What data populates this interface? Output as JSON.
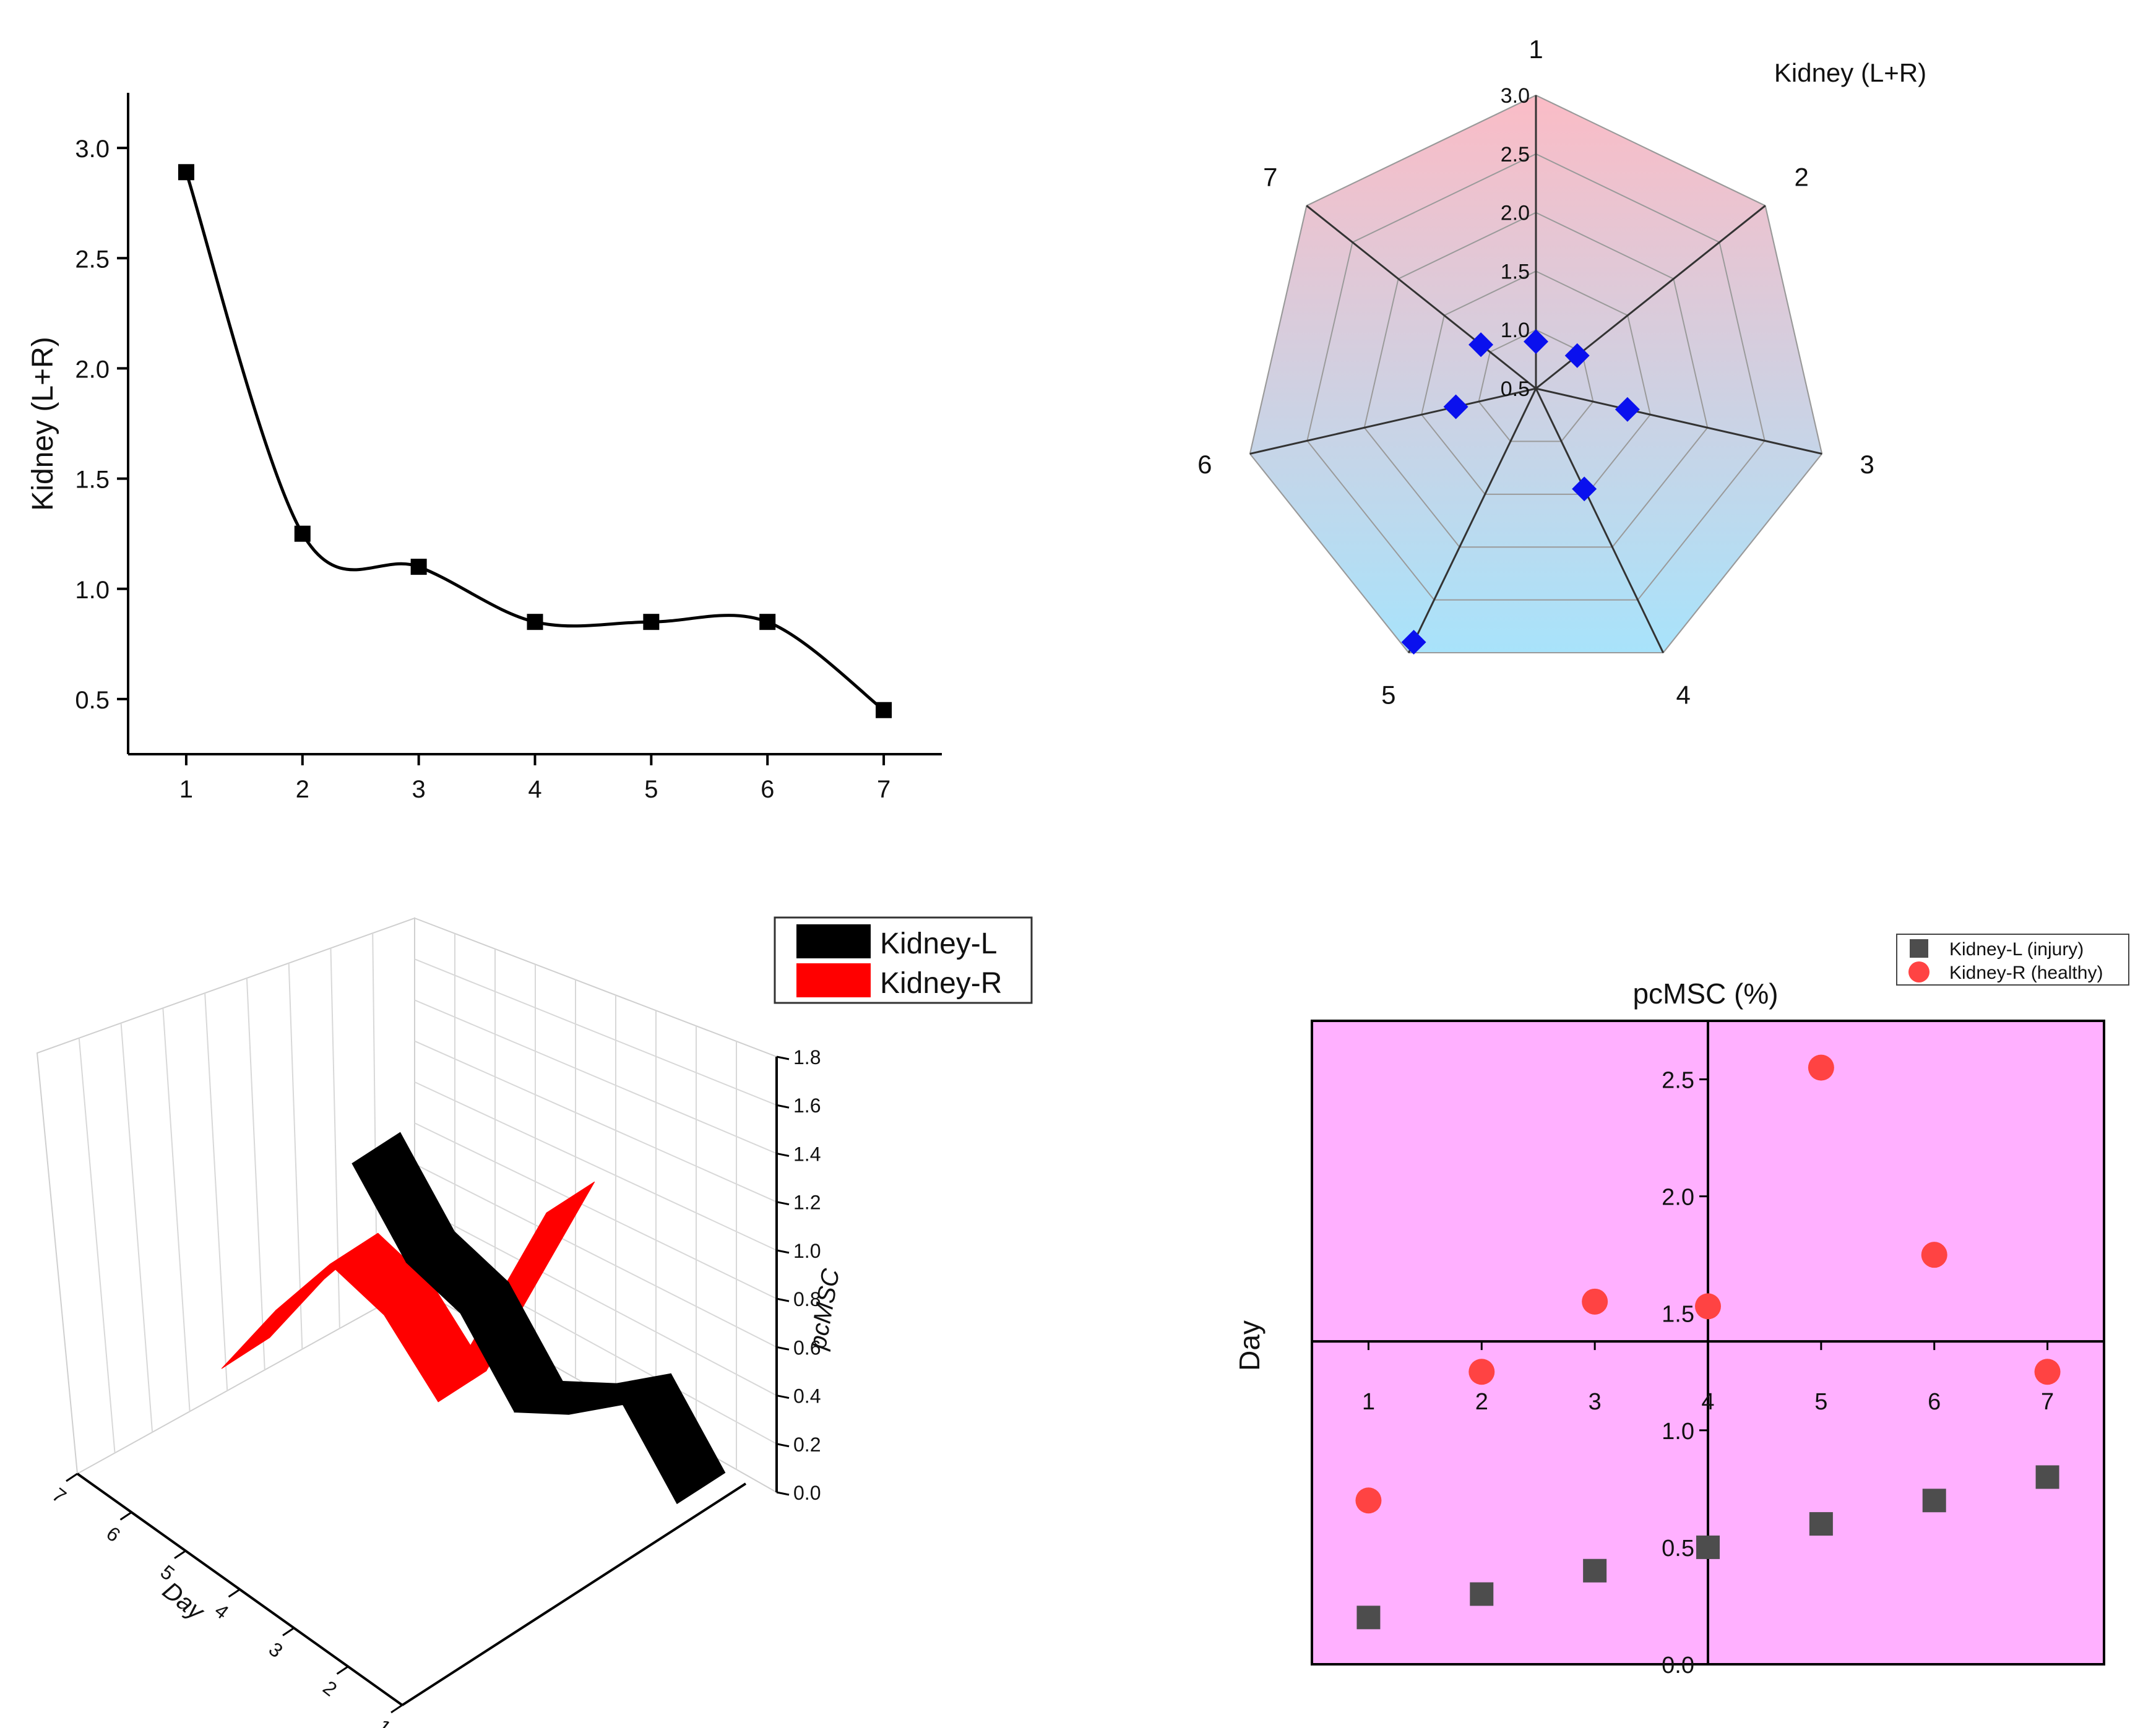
{
  "chart_data": [
    {
      "id": "line",
      "type": "line",
      "title": "",
      "xlabel": "",
      "ylabel": "Kidney (L+R)",
      "x": [
        1,
        2,
        3,
        4,
        5,
        6,
        7
      ],
      "values": [
        2.89,
        1.25,
        1.1,
        0.85,
        0.85,
        0.85,
        0.45
      ],
      "xlim": [
        0.5,
        7.5
      ],
      "ylim": [
        0.25,
        3.25
      ],
      "yticks": [
        0.5,
        1.0,
        1.5,
        2.0,
        2.5,
        3.0
      ],
      "ytick_labels": [
        "0.5",
        "1.0",
        "1.5",
        "2.0",
        "2.5",
        "3.0"
      ],
      "xtick_labels": [
        "1",
        "2",
        "3",
        "4",
        "5",
        "6",
        "7"
      ],
      "marker": "square",
      "color": "#000000"
    },
    {
      "id": "radar",
      "type": "radar",
      "title": "Kidney (L+R)",
      "axes": [
        "1",
        "2",
        "3",
        "4",
        "5",
        "6",
        "7"
      ],
      "values": [
        0.9,
        0.95,
        1.3,
        1.45,
        2.9,
        1.2,
        1.1
      ],
      "rlim": [
        0.5,
        3.0
      ],
      "ring_labels": [
        "0.5",
        "1.0",
        "1.5",
        "2.0",
        "2.5",
        "3.0"
      ],
      "ring_values": [
        0.5,
        1.0,
        1.5,
        2.0,
        2.5,
        3.0
      ],
      "marker_color": "#0a10ee",
      "fill_top_color": "#fbbcc6",
      "fill_bottom_color": "#a8e3fb"
    },
    {
      "id": "ribbon3d",
      "type": "3d-ribbon",
      "zlabel": "pcMSC",
      "daylabel": "Day",
      "zticks": [
        "0.0",
        "0.2",
        "0.4",
        "0.6",
        "0.8",
        "1.0",
        "1.2",
        "1.4",
        "1.6",
        "1.8"
      ],
      "day_ticks": [
        "7",
        "6",
        "5",
        "4",
        "3",
        "2",
        "1"
      ],
      "legend": [
        "Kidney-L",
        "Kidney-R"
      ],
      "colors": [
        "#000000",
        "#ff0000"
      ],
      "series": [
        {
          "name": "Kidney-L",
          "days": [
            1,
            2,
            3,
            4,
            5,
            6,
            7
          ],
          "values": [
            0.1,
            0.35,
            0.15,
            0.0,
            0.25,
            0.3,
            0.55
          ]
        },
        {
          "name": "Kidney-R",
          "days": [
            1,
            2,
            3,
            4,
            5,
            6,
            7
          ],
          "values": [
            1.65,
            1.1,
            0.55,
            0.75,
            0.8,
            0.45,
            0.05
          ]
        }
      ]
    },
    {
      "id": "scatter",
      "type": "scatter",
      "title": "pcMSC (%)",
      "ylabel": "Day",
      "background": "#ffb0ff",
      "xlim": [
        0.5,
        7.5
      ],
      "ylim": [
        0.0,
        2.75
      ],
      "yticks": [
        0.0,
        0.5,
        1.0,
        1.5,
        2.0,
        2.5
      ],
      "ytick_labels": [
        "0.0",
        "0.5",
        "1.0",
        "1.5",
        "2.0",
        "2.5"
      ],
      "xtick_labels": [
        "1",
        "2",
        "3",
        "4",
        "5",
        "6",
        "7"
      ],
      "x_axis_at": 1.38,
      "y_axis_at": 4,
      "series": [
        {
          "name": "Kidney-L (injury)",
          "marker": "square",
          "color": "#4d4d4d",
          "x": [
            1,
            2,
            3,
            4,
            5,
            6,
            7
          ],
          "y": [
            0.2,
            0.3,
            0.4,
            0.5,
            0.6,
            0.7,
            0.8
          ]
        },
        {
          "name": "Kidney-R (healthy)",
          "marker": "circle",
          "color": "#ff4343",
          "x": [
            1,
            2,
            3,
            4,
            5,
            6,
            7
          ],
          "y": [
            0.7,
            1.25,
            1.55,
            1.53,
            2.55,
            1.75,
            1.25
          ]
        }
      ]
    }
  ]
}
